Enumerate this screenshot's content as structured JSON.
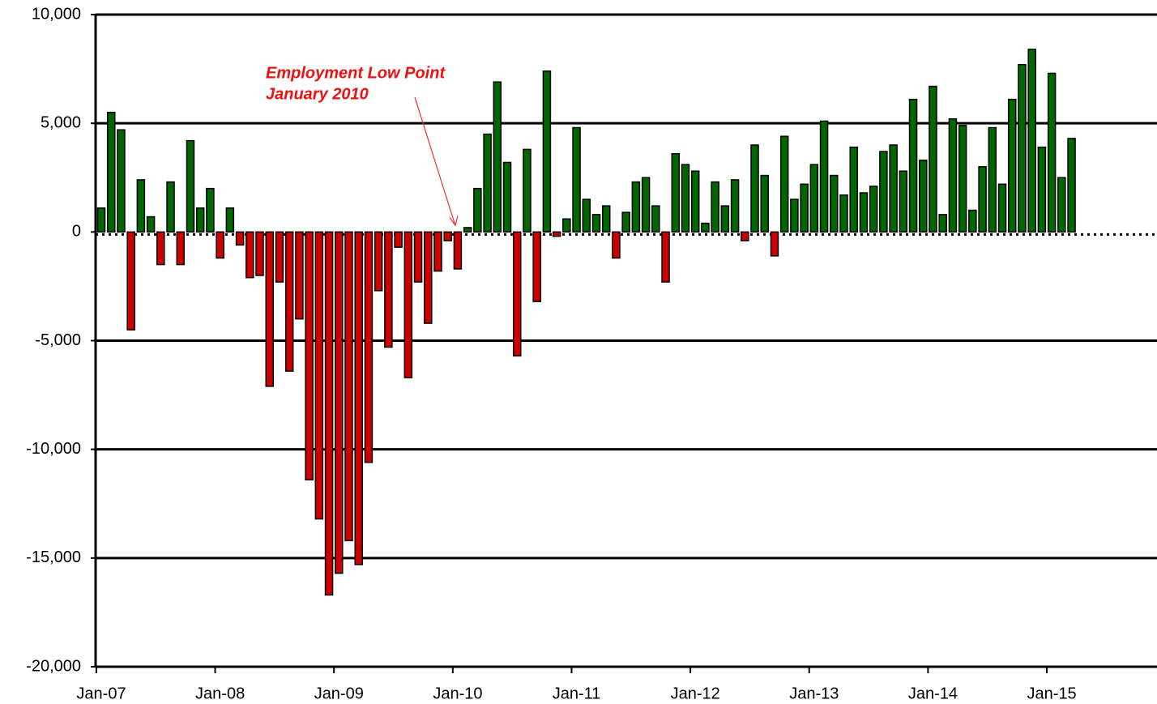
{
  "chart_data": {
    "type": "bar",
    "categories": [
      "Jan-07",
      null,
      null,
      null,
      null,
      null,
      null,
      null,
      null,
      null,
      null,
      null,
      "Jan-08",
      null,
      null,
      null,
      null,
      null,
      null,
      null,
      null,
      null,
      null,
      null,
      "Jan-09",
      null,
      null,
      null,
      null,
      null,
      null,
      null,
      null,
      null,
      null,
      null,
      "Jan-10",
      null,
      null,
      null,
      null,
      null,
      null,
      null,
      null,
      null,
      null,
      null,
      "Jan-11",
      null,
      null,
      null,
      null,
      null,
      null,
      null,
      null,
      null,
      null,
      null,
      "Jan-12",
      null,
      null,
      null,
      null,
      null,
      null,
      null,
      null,
      null,
      null,
      null,
      "Jan-13",
      null,
      null,
      null,
      null,
      null,
      null,
      null,
      null,
      null,
      null,
      null,
      "Jan-14",
      null,
      null,
      null,
      null,
      null,
      null,
      null,
      null,
      null,
      null,
      null,
      "Jan-15",
      null,
      null
    ],
    "values": [
      1100,
      5500,
      4700,
      -4500,
      2400,
      700,
      -1500,
      2300,
      -1500,
      4200,
      1100,
      2000,
      -1200,
      1100,
      -600,
      -2100,
      -2000,
      -7100,
      -2300,
      -6400,
      -4000,
      -11400,
      -13200,
      -16700,
      -15700,
      -14200,
      -15300,
      -10600,
      -2700,
      -5300,
      -700,
      -6700,
      -2300,
      -4200,
      -1800,
      -400,
      -1700,
      200,
      2000,
      4500,
      6900,
      3200,
      -5700,
      3800,
      -3200,
      7400,
      -200,
      600,
      4800,
      1500,
      800,
      1200,
      -1200,
      900,
      2300,
      2500,
      1200,
      -2300,
      3600,
      3100,
      2800,
      400,
      2300,
      1200,
      2400,
      -400,
      4000,
      2600,
      -1100,
      4400,
      1500,
      2200,
      3100,
      5100,
      2600,
      1700,
      3900,
      1800,
      2100,
      3700,
      4000,
      2800,
      6100,
      3300,
      6700,
      800,
      5200,
      4900,
      1000,
      3000,
      4800,
      2200,
      6100,
      7700,
      8400,
      3900,
      7300,
      2500,
      4300
    ],
    "positive_color": "#006600",
    "negative_color": "#cc0000",
    "ylim": [
      -20000,
      10000
    ],
    "yticks": [
      {
        "value": -20000,
        "label": "-20,000"
      },
      {
        "value": -15000,
        "label": "-15,000"
      },
      {
        "value": -10000,
        "label": "-10,000"
      },
      {
        "value": -5000,
        "label": "-5,000"
      },
      0,
      {
        "value": 5000,
        "label": "5,000"
      },
      {
        "value": 10000,
        "label": "10,000"
      }
    ],
    "grid": true,
    "annotation": {
      "lines": [
        "Employment Low Point",
        "January 2010"
      ],
      "category_index": 36
    }
  }
}
